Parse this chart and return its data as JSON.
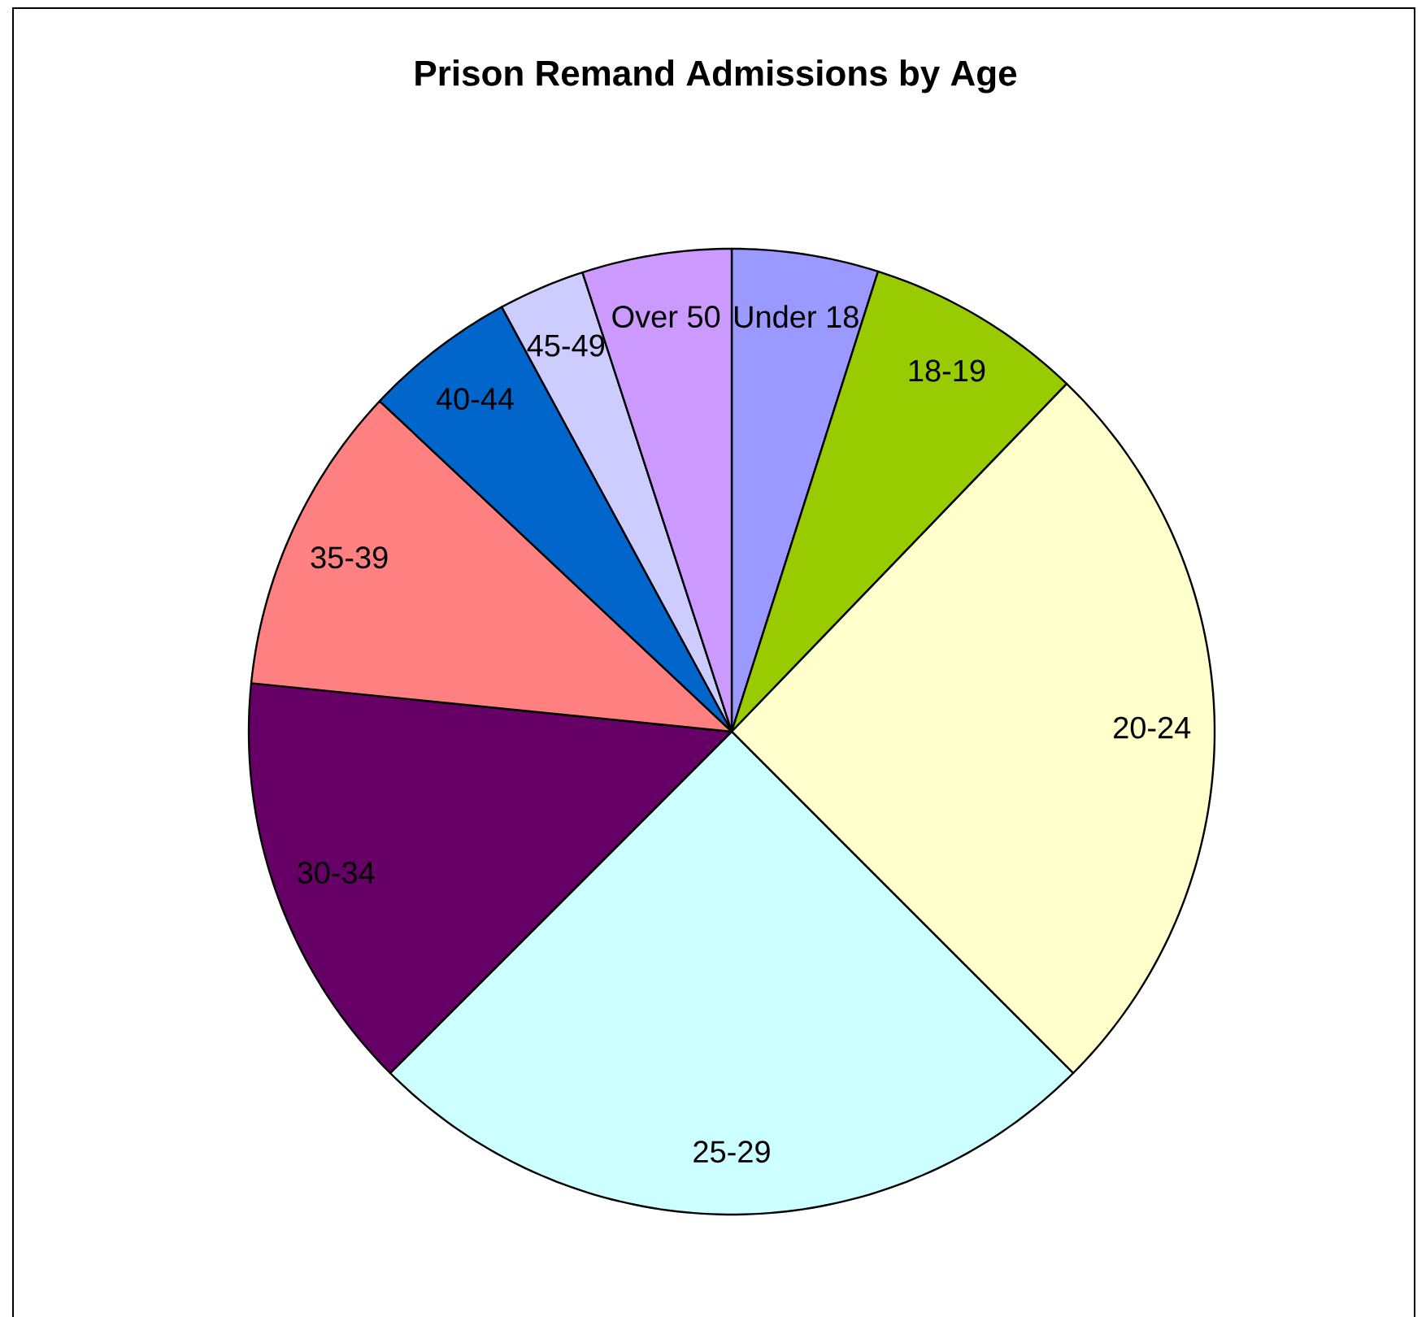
{
  "chart_data": {
    "type": "pie",
    "title": "Prison Remand Admissions by Age",
    "categories": [
      "Under 18",
      "18-19",
      "20-24",
      "25-29",
      "30-34",
      "35-39",
      "40-44",
      "45-49",
      "Over 50"
    ],
    "values": [
      4.9,
      7.3,
      25.3,
      25.0,
      14.1,
      10.4,
      5.1,
      2.9,
      5.0
    ],
    "colors": [
      "#9999ff",
      "#99cc00",
      "#ffffcc",
      "#ccffff",
      "#660066",
      "#ff8080",
      "#0066cc",
      "#ccccff",
      "#cc99ff"
    ],
    "legend": false
  }
}
